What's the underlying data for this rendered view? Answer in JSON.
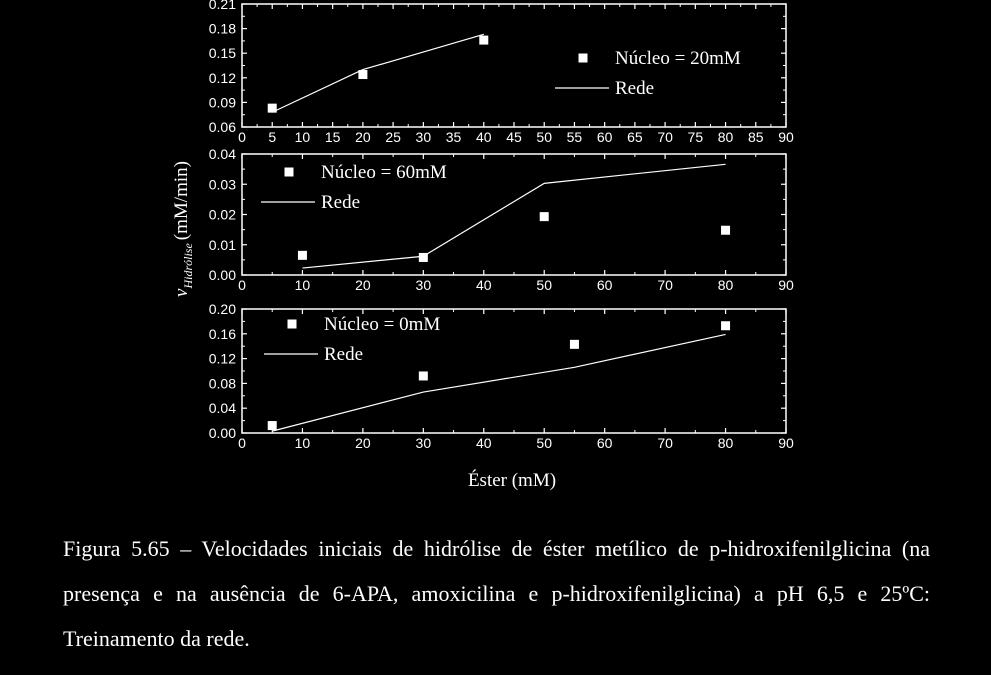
{
  "chart_data": [
    {
      "type": "line",
      "xlim": [
        0,
        90
      ],
      "ylim": [
        0.06,
        0.21
      ],
      "xticks": [
        "0",
        "5",
        "10",
        "15",
        "20",
        "25",
        "30",
        "35",
        "40",
        "45",
        "50",
        "55",
        "60",
        "65",
        "70",
        "75",
        "80",
        "85",
        "90"
      ],
      "yticks": [
        "0.06",
        "0.09",
        "0.12",
        "0.15",
        "0.18",
        "0.21"
      ],
      "legend_position": "right",
      "series": [
        {
          "name": "Núcleo = 20mM",
          "style": "square-markers",
          "x": [
            5,
            20,
            40
          ],
          "y": [
            0.083,
            0.124,
            0.166
          ]
        },
        {
          "name": "Rede",
          "style": "line",
          "x": [
            5,
            20,
            40
          ],
          "y": [
            0.078,
            0.13,
            0.173
          ]
        }
      ]
    },
    {
      "type": "line",
      "xlim": [
        0,
        90
      ],
      "ylim": [
        0.0,
        0.04
      ],
      "xticks": [
        "0",
        "10",
        "20",
        "30",
        "40",
        "50",
        "60",
        "70",
        "80",
        "90"
      ],
      "yticks": [
        "0.00",
        "0.01",
        "0.02",
        "0.03",
        "0.04"
      ],
      "legend_position": "top-left",
      "series": [
        {
          "name": "Núcleo = 60mM",
          "style": "square-markers",
          "x": [
            10,
            30,
            50,
            80
          ],
          "y": [
            0.0065,
            0.0058,
            0.0193,
            0.0148
          ]
        },
        {
          "name": "Rede",
          "style": "line",
          "x": [
            10,
            30,
            50,
            80
          ],
          "y": [
            0.0023,
            0.0062,
            0.0303,
            0.0366
          ]
        }
      ]
    },
    {
      "type": "line",
      "xlim": [
        0,
        90
      ],
      "ylim": [
        0.0,
        0.2
      ],
      "xticks": [
        "0",
        "10",
        "20",
        "30",
        "40",
        "50",
        "60",
        "70",
        "80",
        "90"
      ],
      "yticks": [
        "0.00",
        "0.04",
        "0.08",
        "0.12",
        "0.16",
        "0.20"
      ],
      "legend_position": "top-left",
      "xlabel": "Éster (mM)",
      "series": [
        {
          "name": "Núcleo = 0mM",
          "style": "square-markers",
          "x": [
            5,
            30,
            55,
            80
          ],
          "y": [
            0.012,
            0.092,
            0.143,
            0.173
          ]
        },
        {
          "name": "Rede",
          "style": "line",
          "x": [
            5,
            30,
            55,
            80
          ],
          "y": [
            0.003,
            0.066,
            0.106,
            0.159
          ]
        }
      ]
    }
  ],
  "ylabel": {
    "symbol": "v",
    "subscript": "Hidrólise",
    "unit": "(mM/min)"
  },
  "caption": "Figura 5.65 – Velocidades iniciais de hidrólise de éster metílico de p-hidroxifenilglicina (na presença e na ausência de 6-APA, amoxicilina e p-hidroxifenilglicina) a pH 6,5 e 25ºC: Treinamento da rede.",
  "colors": {
    "background": "#000000",
    "foreground": "#ffffff"
  }
}
